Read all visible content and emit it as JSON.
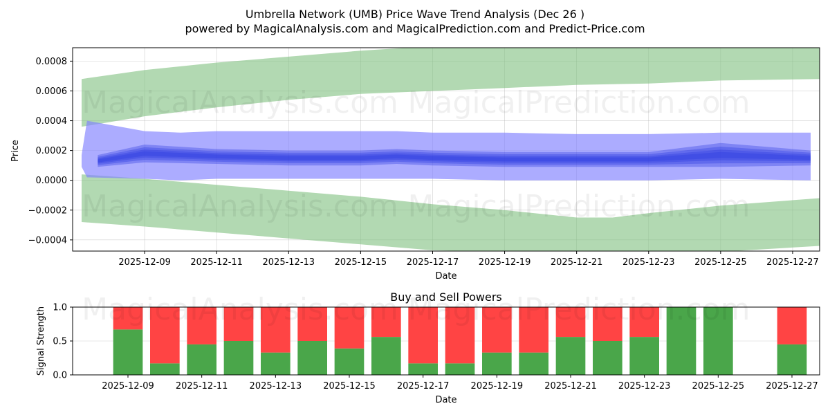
{
  "header": {
    "title": "Umbrella Network (UMB) Price Wave Trend Analysis (Dec 26 )",
    "subtitle": "powered by MagicalAnalysis.com and MagicalPrediction.com and Predict-Price.com"
  },
  "watermarks": [
    "MagicalAnalysis.com",
    "MagicalPrediction.com"
  ],
  "colors": {
    "green_band": "#7fbf7f",
    "blue_band": "#8080ff",
    "blue_line": "#2a3ae0",
    "buy": "#4aa64a",
    "sell": "#ff4444",
    "grid": "#b0b0b0"
  },
  "chart_data": [
    {
      "type": "area",
      "title": "",
      "xlabel": "Date",
      "ylabel": "Price",
      "x_dates": [
        "2025-12-07",
        "2025-12-09",
        "2025-12-10",
        "2025-12-11",
        "2025-12-13",
        "2025-12-15",
        "2025-12-16",
        "2025-12-17",
        "2025-12-19",
        "2025-12-21",
        "2025-12-22",
        "2025-12-23",
        "2025-12-25",
        "2025-12-27"
      ],
      "x_days": [
        -1.6,
        0,
        1,
        2,
        4,
        6,
        7,
        8,
        10,
        12,
        13,
        14,
        16,
        18.5
      ],
      "xlim": [
        -2,
        18.75
      ],
      "ylim": [
        -0.000475,
        0.00089
      ],
      "xticks": [
        "2025-12-09",
        "2025-12-11",
        "2025-12-13",
        "2025-12-15",
        "2025-12-17",
        "2025-12-19",
        "2025-12-21",
        "2025-12-23",
        "2025-12-25",
        "2025-12-27"
      ],
      "xtick_days": [
        0,
        2,
        4,
        6,
        8,
        10,
        12,
        14,
        16,
        18
      ],
      "yticks": [
        -0.0004,
        -0.0002,
        0.0,
        0.0002,
        0.0004,
        0.0006,
        0.0008
      ],
      "ytick_labels": [
        "−0.0004",
        "−0.0002",
        "0.0000",
        "0.0002",
        "0.0004",
        "0.0006",
        "0.0008"
      ],
      "upper_band": {
        "days": [
          -1.75,
          0,
          2,
          4,
          6,
          8,
          10,
          12,
          14,
          16,
          18.75
        ],
        "top": [
          0.00068,
          0.00074,
          0.00079,
          0.00083,
          0.00087,
          0.0009,
          0.0009,
          0.0009,
          0.0009,
          0.0009,
          0.0009
        ],
        "bottom": [
          0.00036,
          0.00043,
          0.00049,
          0.00054,
          0.00058,
          0.0006,
          0.00062,
          0.00064,
          0.00065,
          0.00067,
          0.00068
        ]
      },
      "lower_band": {
        "days": [
          -1.75,
          0,
          2,
          4,
          6,
          8,
          10,
          12,
          13,
          14,
          16,
          18.75
        ],
        "top": [
          4e-05,
          1e-05,
          -3e-05,
          -7e-05,
          -0.00011,
          -0.00016,
          -0.0002,
          -0.00025,
          -0.00025,
          -0.00022,
          -0.00017,
          -0.00012
        ],
        "bottom": [
          -0.00028,
          -0.00031,
          -0.00035,
          -0.00039,
          -0.00043,
          -0.00047,
          -0.00048,
          -0.00048,
          -0.00048,
          -0.00048,
          -0.00048,
          -0.00044
        ]
      },
      "blue_band": {
        "days": [
          -1.75,
          -1.6,
          0,
          1,
          2,
          4,
          6,
          7,
          8,
          10,
          12,
          14,
          16,
          18.5
        ],
        "top": [
          0.00017,
          0.0004,
          0.00033,
          0.00032,
          0.00033,
          0.00033,
          0.00033,
          0.00033,
          0.00032,
          0.00032,
          0.00031,
          0.00031,
          0.00032,
          0.00032
        ],
        "bottom": [
          9e-05,
          2e-05,
          1e-05,
          0.0,
          1e-05,
          1e-05,
          1e-05,
          1e-05,
          1e-05,
          0.0,
          0.0,
          0.0,
          1e-05,
          0.0
        ]
      },
      "center_line": {
        "days": [
          -1.3,
          0,
          2,
          4,
          6,
          7,
          8,
          10,
          12,
          14,
          16,
          18.5
        ],
        "values": [
          0.00013,
          0.00018,
          0.00016,
          0.00015,
          0.00015,
          0.00016,
          0.00015,
          0.00014,
          0.00014,
          0.00014,
          0.00017,
          0.00015
        ],
        "spread": [
          4e-05,
          6e-05,
          5e-05,
          5e-05,
          5e-05,
          5e-05,
          5e-05,
          5e-05,
          5e-05,
          5e-05,
          8e-05,
          5e-05
        ]
      }
    },
    {
      "type": "bar",
      "title": "Buy and Sell Powers",
      "xlabel": "Date",
      "ylabel": "Signal Strength",
      "xlim": [
        -1.5,
        18.75
      ],
      "ylim": [
        0,
        1
      ],
      "yticks": [
        0.0,
        0.5,
        1.0
      ],
      "ytick_labels": [
        "0.0",
        "0.5",
        "1.0"
      ],
      "xticks": [
        "2025-12-09",
        "2025-12-11",
        "2025-12-13",
        "2025-12-15",
        "2025-12-17",
        "2025-12-19",
        "2025-12-21",
        "2025-12-23",
        "2025-12-25",
        "2025-12-27"
      ],
      "xtick_days": [
        0,
        2,
        4,
        6,
        8,
        10,
        12,
        14,
        16,
        18
      ],
      "bar_days": [
        0,
        1,
        2,
        3,
        4,
        5,
        6,
        7,
        8,
        9,
        10,
        11,
        12,
        13,
        14,
        15,
        16,
        18
      ],
      "series": [
        {
          "name": "Buy",
          "values": [
            0.67,
            0.17,
            0.45,
            0.5,
            0.33,
            0.5,
            0.39,
            0.56,
            0.17,
            0.17,
            0.33,
            0.33,
            0.56,
            0.5,
            0.56,
            1.0,
            1.0,
            0.45
          ]
        },
        {
          "name": "Sell",
          "values": [
            0.33,
            0.83,
            0.55,
            0.5,
            0.67,
            0.5,
            0.61,
            0.44,
            0.83,
            0.83,
            0.67,
            0.67,
            0.44,
            0.5,
            0.44,
            0.0,
            0.0,
            0.55
          ]
        }
      ]
    }
  ]
}
